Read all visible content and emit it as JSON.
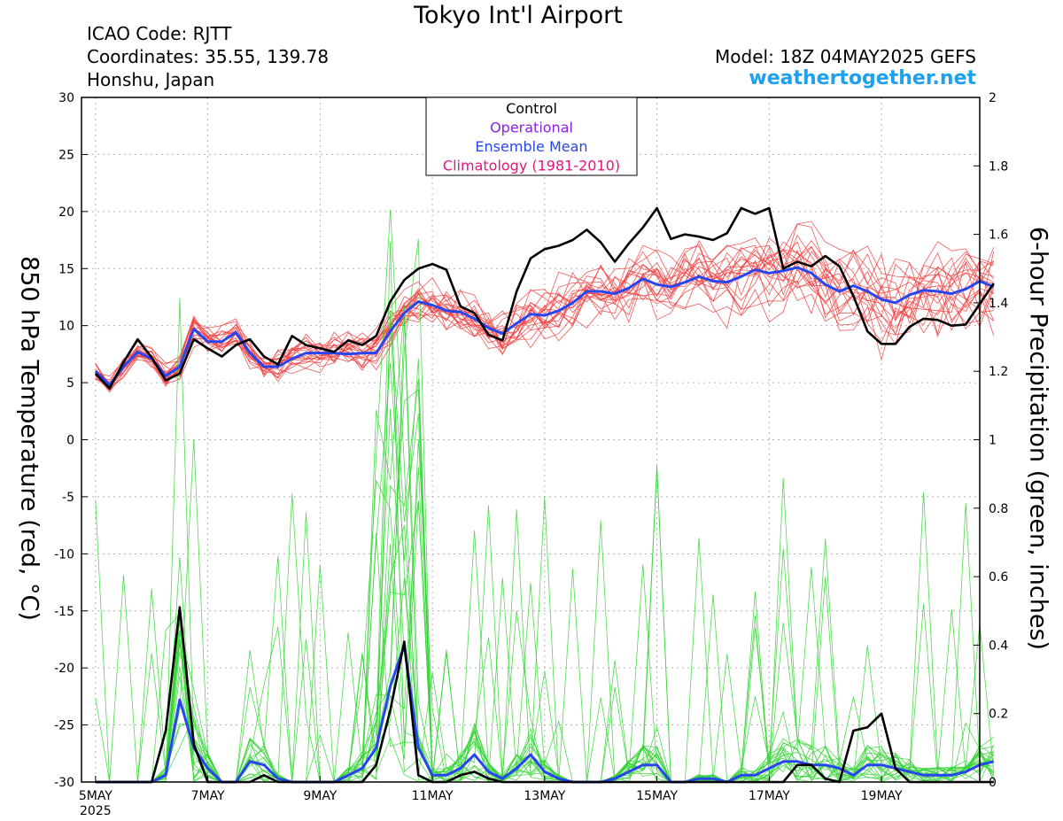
{
  "header": {
    "title": "Tokyo Int'l Airport",
    "icao": "ICAO Code: RJTT",
    "coords": "Coordinates: 35.55, 139.78",
    "region": "Honshu, Japan",
    "model": "Model: 18Z 04MAY2025 GEFS",
    "site": "weathertogether.net"
  },
  "chart_data": {
    "type": "line",
    "title": "Tokyo Int'l Airport",
    "ylabel_left": "850 hPa Temperature (red, °C)",
    "ylabel_right": "6-hour Precipitation (green, inches)",
    "ylim_left": [
      -30,
      30
    ],
    "ylim_right": [
      0,
      2
    ],
    "yticks_left": [
      "30",
      "25",
      "20",
      "15",
      "10",
      "5",
      "0",
      "-5",
      "-10",
      "-15",
      "-20",
      "-25",
      "-30"
    ],
    "yticks_right": [
      "2",
      "1.8",
      "1.6",
      "1.4",
      "1.2",
      "1",
      "0.8",
      "0.6",
      "0.4",
      "0.2",
      "0"
    ],
    "xticks": [
      {
        "x": 0,
        "label": "5MAY",
        "sub": "2025"
      },
      {
        "x": 8,
        "label": "7MAY"
      },
      {
        "x": 16,
        "label": "9MAY"
      },
      {
        "x": 24,
        "label": "11MAY"
      },
      {
        "x": 32,
        "label": "13MAY"
      },
      {
        "x": 40,
        "label": "15MAY"
      },
      {
        "x": 48,
        "label": "17MAY"
      },
      {
        "x": 56,
        "label": "19MAY"
      }
    ],
    "x_range": [
      -1,
      63
    ],
    "x_step": "6 hours (index 0 = 00Z 5MAY)",
    "grid": true,
    "legend": {
      "position": "top-center",
      "items": [
        {
          "label": "Control",
          "color": "#000000"
        },
        {
          "label": "Operational",
          "color": "#8c1ee6"
        },
        {
          "label": "Ensemble Mean",
          "color": "#2846f0"
        },
        {
          "label": "Climatology (1981-2010)",
          "color": "#e6147d"
        }
      ]
    },
    "colors": {
      "member_temp": "#f03c3c",
      "member_precip": "#32d232",
      "control": "#000000",
      "mean": "#2846f0"
    },
    "series": [
      {
        "name": "Control",
        "axis": "temperature",
        "values": [
          5.8,
          4.5,
          6.8,
          8.8,
          7.2,
          5.2,
          5.8,
          8.8,
          8.0,
          7.3,
          8.3,
          8.8,
          7.3,
          6.6,
          9.1,
          8.3,
          8.0,
          7.7,
          8.7,
          8.3,
          9.1,
          12.1,
          14.0,
          15.0,
          15.4,
          14.9,
          11.7,
          11.1,
          9.2,
          8.7,
          13.0,
          15.9,
          16.7,
          17.0,
          17.5,
          18.4,
          17.3,
          15.6,
          17.2,
          18.6,
          20.3,
          17.6,
          18.0,
          17.8,
          17.5,
          18.1,
          20.3,
          19.8,
          20.3,
          15.0,
          15.6,
          15.2,
          16.1,
          15.2,
          12.6,
          9.5,
          8.4,
          8.4,
          9.9,
          10.6,
          10.5,
          10.0,
          10.1,
          11.9,
          13.7
        ]
      },
      {
        "name": "Ensemble Mean",
        "axis": "temperature",
        "values": [
          6.0,
          4.8,
          6.4,
          7.7,
          7.1,
          5.6,
          6.4,
          9.7,
          8.6,
          8.6,
          9.4,
          7.6,
          6.4,
          6.4,
          7.1,
          7.6,
          7.6,
          7.6,
          7.5,
          7.6,
          7.6,
          9.5,
          11.1,
          12.1,
          11.8,
          11.3,
          11.2,
          10.6,
          9.8,
          9.3,
          10.2,
          11.0,
          10.9,
          11.3,
          12.0,
          13.0,
          13.0,
          12.8,
          13.3,
          14.1,
          13.6,
          13.4,
          13.8,
          14.3,
          13.9,
          13.8,
          14.3,
          14.9,
          14.6,
          14.8,
          15.1,
          14.6,
          13.6,
          13.0,
          13.5,
          13.0,
          12.3,
          12.0,
          12.7,
          13.1,
          13.0,
          12.8,
          13.2,
          13.9,
          13.4
        ]
      },
      {
        "name": "Control",
        "axis": "precipitation",
        "values": [
          0,
          0,
          0,
          0,
          0,
          0.15,
          0.51,
          0.11,
          0,
          0,
          0,
          0,
          0.02,
          0,
          0,
          0,
          0,
          0,
          0,
          0,
          0.05,
          0.21,
          0.41,
          0.02,
          0,
          0,
          0.02,
          0.03,
          0.01,
          0,
          0,
          0,
          0,
          0,
          0,
          0,
          0,
          0,
          0,
          0,
          0,
          0,
          0,
          0,
          0,
          0,
          0,
          0,
          0,
          0,
          0.05,
          0.05,
          0.01,
          0,
          0.15,
          0.16,
          0.2,
          0.04,
          0,
          0,
          0,
          0,
          0,
          0,
          0
        ]
      },
      {
        "name": "Ensemble Mean",
        "axis": "precipitation",
        "values": [
          0,
          0,
          0,
          0,
          0,
          0.02,
          0.24,
          0.1,
          0.04,
          0,
          0,
          0.06,
          0.05,
          0.01,
          0,
          0,
          0,
          0,
          0.02,
          0.04,
          0.1,
          0.28,
          0.4,
          0.1,
          0.02,
          0.02,
          0.04,
          0.08,
          0.03,
          0.01,
          0.04,
          0.08,
          0.03,
          0.01,
          0,
          0,
          0,
          0.01,
          0.03,
          0.05,
          0.05,
          0,
          0,
          0.01,
          0.01,
          0,
          0.02,
          0.02,
          0.04,
          0.06,
          0.06,
          0.05,
          0.05,
          0.04,
          0.02,
          0.05,
          0.05,
          0.04,
          0.03,
          0.02,
          0.02,
          0.02,
          0.03,
          0.05,
          0.06
        ]
      }
    ]
  }
}
